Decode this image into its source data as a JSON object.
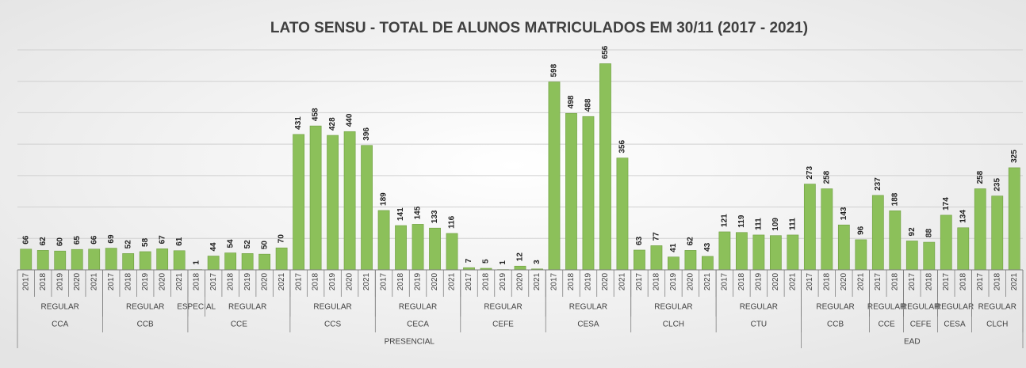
{
  "chart_data": {
    "type": "bar",
    "title": "LATO SENSU - TOTAL DE ALUNOS MATRICULADOS EM 30/11 (2017 - 2021)",
    "color": "#8cc05a",
    "ylim": [
      0,
      700
    ],
    "yticks": [
      0,
      100,
      200,
      300,
      400,
      500,
      600,
      700
    ],
    "grid": true,
    "groups": [
      {
        "name": "PRESENCIAL",
        "centers": [
          {
            "name": "CCA",
            "types": [
              {
                "name": "REGULAR",
                "categories": [
                  "2017",
                  "2018",
                  "2019",
                  "2020",
                  "2021"
                ],
                "values": [
                  66,
                  62,
                  60,
                  65,
                  66
                ]
              }
            ]
          },
          {
            "name": "CCB",
            "types": [
              {
                "name": "REGULAR",
                "categories": [
                  "2017",
                  "2018",
                  "2019",
                  "2020",
                  "2021"
                ],
                "values": [
                  69,
                  52,
                  58,
                  67,
                  61
                ]
              }
            ]
          },
          {
            "name": "CCE",
            "types": [
              {
                "name": "ESPECIAL",
                "categories": [
                  "2018"
                ],
                "values": [
                  1
                ]
              },
              {
                "name": "REGULAR",
                "categories": [
                  "2017",
                  "2018",
                  "2019",
                  "2020",
                  "2021"
                ],
                "values": [
                  44,
                  54,
                  52,
                  50,
                  70
                ]
              }
            ]
          },
          {
            "name": "CCS",
            "types": [
              {
                "name": "REGULAR",
                "categories": [
                  "2017",
                  "2018",
                  "2019",
                  "2020",
                  "2021"
                ],
                "values": [
                  431,
                  458,
                  428,
                  440,
                  396
                ]
              }
            ]
          },
          {
            "name": "CECA",
            "types": [
              {
                "name": "REGULAR",
                "categories": [
                  "2017",
                  "2018",
                  "2019",
                  "2020",
                  "2021"
                ],
                "values": [
                  189,
                  141,
                  145,
                  133,
                  116
                ]
              }
            ]
          },
          {
            "name": "CEFE",
            "types": [
              {
                "name": "REGULAR",
                "categories": [
                  "2017",
                  "2018",
                  "2019",
                  "2020",
                  "2021"
                ],
                "values": [
                  7,
                  5,
                  1,
                  12,
                  3
                ]
              }
            ]
          },
          {
            "name": "CESA",
            "types": [
              {
                "name": "REGULAR",
                "categories": [
                  "2017",
                  "2018",
                  "2019",
                  "2020",
                  "2021"
                ],
                "values": [
                  598,
                  498,
                  488,
                  656,
                  356
                ]
              }
            ]
          },
          {
            "name": "CLCH",
            "types": [
              {
                "name": "REGULAR",
                "categories": [
                  "2017",
                  "2018",
                  "2019",
                  "2020",
                  "2021"
                ],
                "values": [
                  63,
                  77,
                  41,
                  62,
                  43
                ]
              }
            ]
          },
          {
            "name": "CTU",
            "types": [
              {
                "name": "REGULAR",
                "categories": [
                  "2017",
                  "2018",
                  "2019",
                  "2020",
                  "2021"
                ],
                "values": [
                  121,
                  119,
                  111,
                  109,
                  111
                ]
              }
            ]
          }
        ]
      },
      {
        "name": "EAD",
        "centers": [
          {
            "name": "CCB",
            "types": [
              {
                "name": "REGULAR",
                "categories": [
                  "2017",
                  "2018",
                  "2020",
                  "2021"
                ],
                "values": [
                  273,
                  258,
                  143,
                  96
                ]
              }
            ]
          },
          {
            "name": "CCE",
            "types": [
              {
                "name": "REGULAR",
                "categories": [
                  "2017",
                  "2018"
                ],
                "values": [
                  237,
                  188
                ]
              }
            ]
          },
          {
            "name": "CEFE",
            "types": [
              {
                "name": "REGULAR",
                "categories": [
                  "2017",
                  "2018"
                ],
                "values": [
                  92,
                  88
                ]
              }
            ]
          },
          {
            "name": "CESA",
            "types": [
              {
                "name": "REGULAR",
                "categories": [
                  "2017",
                  "2018"
                ],
                "values": [
                  174,
                  134
                ]
              }
            ]
          },
          {
            "name": "CLCH",
            "types": [
              {
                "name": "REGULAR",
                "categories": [
                  "2017",
                  "2018",
                  "2021"
                ],
                "values": [
                  258,
                  235,
                  325
                ]
              }
            ]
          }
        ]
      }
    ]
  }
}
